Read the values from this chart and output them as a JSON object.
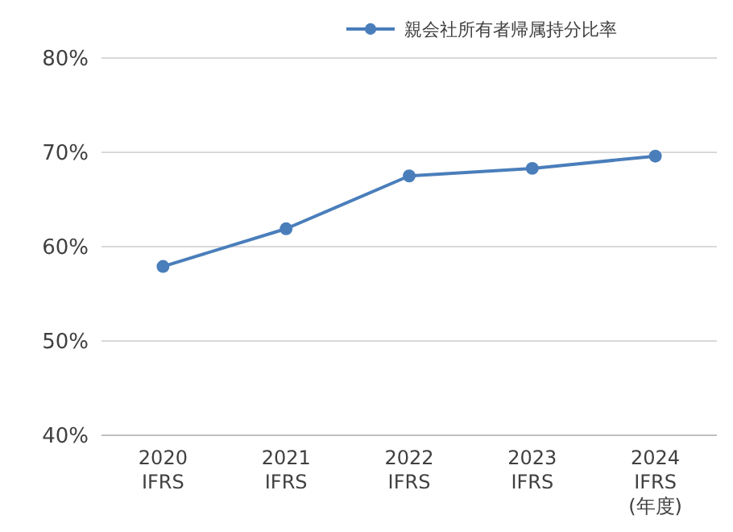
{
  "chart_data": {
    "type": "line",
    "categories": [
      "2020\nIFRS",
      "2021\nIFRS",
      "2022\nIFRS",
      "2023\nIFRS",
      "2024\nIFRS\n(年度)"
    ],
    "series": [
      {
        "name": "親会社所有者帰属持分比率",
        "color": "#4a7ebb",
        "values": [
          57.9,
          61.9,
          67.5,
          68.3,
          69.6
        ]
      }
    ],
    "ylim": [
      40,
      80
    ],
    "yticks": [
      {
        "value": 40,
        "label": "40%"
      },
      {
        "value": 50,
        "label": "50%"
      },
      {
        "value": 60,
        "label": "60%"
      },
      {
        "value": 70,
        "label": "70%"
      },
      {
        "value": 80,
        "label": "80%"
      }
    ],
    "grid": "y",
    "legend": "top right",
    "marker": "circle",
    "line_style": "solid"
  }
}
